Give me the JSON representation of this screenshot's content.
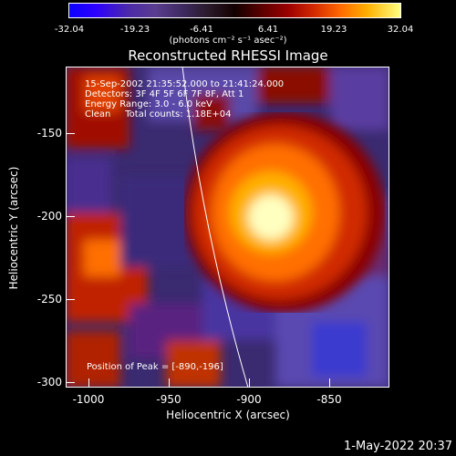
{
  "colorbar": {
    "ticks": [
      "-32.04",
      "-19.23",
      "-6.41",
      "6.41",
      "19.23",
      "32.04"
    ],
    "units": "(photons cm⁻² s⁻¹ asec⁻²)"
  },
  "title": "Reconstructed RHESSI Image",
  "info": {
    "line1": "15-Sep-2002 21:35:52.000 to 21:41:24.000",
    "line2": "Detectors: 3F 4F 5F 6F 7F 8F, Att 1",
    "line3": "Energy Range: 3.0 - 6.0 keV",
    "line4": "Clean     Total counts: 1.18E+04",
    "peak": "Position of Peak = [-890,-196]"
  },
  "axes": {
    "xlabel": "Heliocentric X (arcsec)",
    "ylabel": "Heliocentric Y (arcsec)",
    "xticks": [
      "-1000",
      "-950",
      "-900",
      "-850"
    ],
    "yticks": [
      "-150",
      "-200",
      "-250",
      "-300"
    ]
  },
  "footer": {
    "date": "1-May-2022 20:37"
  }
}
